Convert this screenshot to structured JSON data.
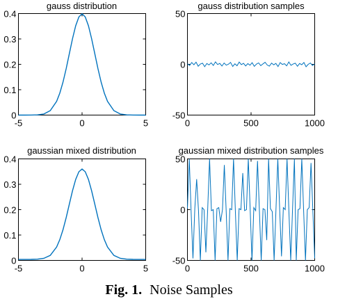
{
  "figure": {
    "caption_label": "Fig. 1.",
    "caption_text": "Noise Samples"
  },
  "chart_data": [
    {
      "type": "line",
      "title": "gauss distribution",
      "xlim": [
        -5,
        5
      ],
      "ylim": [
        0,
        0.4
      ],
      "xticks": [
        "-5",
        "0",
        "5"
      ],
      "yticks": [
        "0",
        "0.1",
        "0.2",
        "0.3",
        "0.4"
      ],
      "series": [
        {
          "x": [
            -5,
            -4.5,
            -4,
            -3.5,
            -3,
            -2.5,
            -2,
            -1.75,
            -1.5,
            -1.25,
            -1,
            -0.75,
            -0.5,
            -0.25,
            0,
            0.25,
            0.5,
            0.75,
            1,
            1.25,
            1.5,
            1.75,
            2,
            2.5,
            3,
            3.5,
            4,
            4.5,
            5
          ],
          "y": [
            0.0,
            0.0,
            0.0001,
            0.0009,
            0.0044,
            0.0175,
            0.054,
            0.0863,
            0.1295,
            0.1826,
            0.242,
            0.3011,
            0.3521,
            0.3867,
            0.3989,
            0.3867,
            0.3521,
            0.3011,
            0.242,
            0.1826,
            0.1295,
            0.0863,
            0.054,
            0.0175,
            0.0044,
            0.0009,
            0.0001,
            0.0,
            0.0
          ]
        }
      ],
      "color": "#0072bd"
    },
    {
      "type": "line",
      "title": "gauss distribution samples",
      "xlim": [
        0,
        1000
      ],
      "ylim": [
        -50,
        50
      ],
      "xticks": [
        "0",
        "500",
        "1000"
      ],
      "yticks": [
        "-50",
        "0",
        "50"
      ],
      "series": [
        {
          "x_range": [
            0,
            1000
          ],
          "y": [
            0.6,
            -1.2,
            1.8,
            -0.4,
            2.1,
            -1.9,
            0.3,
            1.1,
            -2.3,
            0.8,
            -0.6,
            1.5,
            -1.1,
            2.4,
            -0.2,
            0.9,
            -1.7,
            1.3,
            -0.8,
            0.1,
            1.9,
            -2.1,
            0.5,
            -1.4,
            2.2,
            -0.3,
            1.0,
            -1.6,
            0.7,
            -0.9,
            1.6,
            -2.0,
            0.2,
            1.4,
            -1.3,
            0.4,
            2.0,
            -0.7,
            -1.8,
            1.2,
            -0.5,
            0.9,
            -2.2,
            1.7,
            -0.1,
            0.6,
            -1.5,
            2.3,
            -1.0,
            0.3,
            1.1,
            -1.9,
            0.8,
            -0.4,
            1.8,
            -2.4,
            0.0,
            1.3,
            -1.2,
            0.5
          ]
        }
      ],
      "color": "#0072bd"
    },
    {
      "type": "line",
      "title": "gaussian mixed distribution",
      "xlim": [
        -5,
        5
      ],
      "ylim": [
        0,
        0.4
      ],
      "xticks": [
        "-5",
        "0",
        "5"
      ],
      "yticks": [
        "0",
        "0.1",
        "0.2",
        "0.3",
        "0.4"
      ],
      "series": [
        {
          "x": [
            -5,
            -4.5,
            -4,
            -3.5,
            -3,
            -2.5,
            -2,
            -1.75,
            -1.5,
            -1.25,
            -1,
            -0.75,
            -0.5,
            -0.25,
            0,
            0.25,
            0.5,
            0.75,
            1,
            1.25,
            1.5,
            1.75,
            2,
            2.5,
            3,
            3.5,
            4,
            4.5,
            5
          ],
          "y": [
            0.004,
            0.004,
            0.0041,
            0.0049,
            0.0083,
            0.0198,
            0.0527,
            0.0817,
            0.1205,
            0.1683,
            0.2218,
            0.2745,
            0.3192,
            0.3493,
            0.36,
            0.3493,
            0.3192,
            0.2745,
            0.2218,
            0.1683,
            0.1205,
            0.0817,
            0.0527,
            0.0198,
            0.0083,
            0.0049,
            0.0041,
            0.004,
            0.004
          ]
        }
      ],
      "color": "#0072bd"
    },
    {
      "type": "line",
      "title": "gaussian mixed distribution samples",
      "xlim": [
        0,
        1000
      ],
      "ylim": [
        -50,
        50
      ],
      "xticks": [
        "0",
        "500",
        "1000"
      ],
      "yticks": [
        "-50",
        "0",
        "50"
      ],
      "series": [
        {
          "x_range": [
            0,
            1000
          ],
          "y": [
            1,
            50,
            -2,
            -48,
            1,
            30,
            -1,
            -50,
            2,
            0,
            -42,
            1,
            50,
            -1,
            0,
            -50,
            1,
            2,
            -12,
            0,
            44,
            -1,
            -50,
            1,
            0,
            50,
            -2,
            -50,
            1,
            0,
            36,
            -1,
            0,
            50,
            1,
            -50,
            2,
            -1,
            48,
            0,
            -50,
            1,
            0,
            -30,
            50,
            1,
            -2,
            -50,
            0,
            50,
            1,
            -46,
            2,
            0,
            50,
            -1,
            -50,
            1,
            50,
            -50,
            0,
            1,
            50,
            -1,
            -50,
            0,
            2,
            46,
            -1,
            -48
          ]
        }
      ],
      "color": "#0072bd"
    }
  ]
}
